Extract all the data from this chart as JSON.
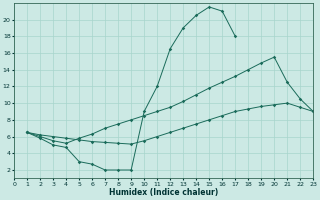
{
  "xlabel": "Humidex (Indice chaleur)",
  "background_color": "#cce9e4",
  "grid_color": "#a8d5cd",
  "line_color": "#1a6b5a",
  "series_data": {
    "line1_x": [
      1,
      2,
      3,
      4,
      5,
      6,
      7,
      8,
      9,
      10,
      11,
      12,
      13,
      14,
      15,
      16,
      17
    ],
    "line1_y": [
      6.5,
      5.8,
      5.0,
      4.7,
      3.0,
      2.7,
      2.0,
      2.0,
      2.0,
      9.0,
      12.0,
      16.5,
      19.0,
      20.5,
      21.5,
      21.0,
      18.0
    ],
    "line2_x": [
      1,
      2,
      3,
      4,
      5,
      6,
      7,
      8,
      9,
      10,
      11,
      12,
      13,
      14,
      15,
      16,
      17,
      18,
      19,
      20,
      21,
      22,
      23
    ],
    "line2_y": [
      6.5,
      6.0,
      5.5,
      5.2,
      5.8,
      6.3,
      7.0,
      7.5,
      8.0,
      8.5,
      9.0,
      9.5,
      10.2,
      11.0,
      11.8,
      12.5,
      13.2,
      14.0,
      14.8,
      15.5,
      12.5,
      10.5,
      9.0
    ],
    "line3_x": [
      1,
      2,
      3,
      4,
      5,
      6,
      7,
      8,
      9,
      10,
      11,
      12,
      13,
      14,
      15,
      16,
      17,
      18,
      19,
      20,
      21,
      22,
      23
    ],
    "line3_y": [
      6.5,
      6.2,
      6.0,
      5.8,
      5.6,
      5.4,
      5.3,
      5.2,
      5.1,
      5.5,
      6.0,
      6.5,
      7.0,
      7.5,
      8.0,
      8.5,
      9.0,
      9.3,
      9.6,
      9.8,
      10.0,
      9.5,
      9.0
    ]
  },
  "ylim": [
    1,
    22
  ],
  "xlim": [
    0,
    23
  ],
  "yticks": [
    2,
    4,
    6,
    8,
    10,
    12,
    14,
    16,
    18,
    20
  ],
  "xticks": [
    0,
    1,
    2,
    3,
    4,
    5,
    6,
    7,
    8,
    9,
    10,
    11,
    12,
    13,
    14,
    15,
    16,
    17,
    18,
    19,
    20,
    21,
    22,
    23
  ]
}
